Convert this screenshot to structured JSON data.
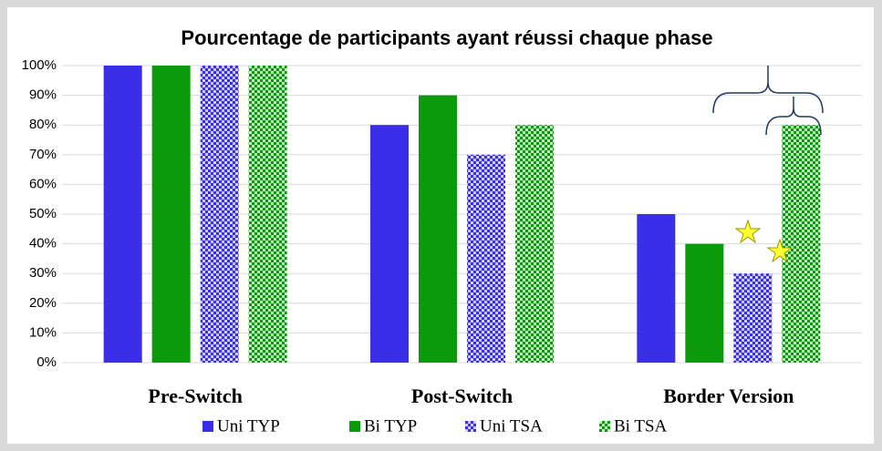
{
  "chart_data": {
    "type": "bar",
    "title": "Pourcentage de participants ayant réussi chaque phase",
    "categories": [
      "Pre-Switch",
      "Post-Switch",
      "Border Version"
    ],
    "series": [
      {
        "name": "Uni TYP",
        "color": "#3a2ee8",
        "pattern": false,
        "values": [
          100,
          80,
          50
        ]
      },
      {
        "name": "Bi TYP",
        "color": "#0b9a0b",
        "pattern": false,
        "values": [
          100,
          90,
          40
        ]
      },
      {
        "name": "Uni TSA",
        "color": "#3a2ee8",
        "pattern": true,
        "values": [
          100,
          70,
          30
        ]
      },
      {
        "name": "Bi TSA",
        "color": "#0b9a0b",
        "pattern": true,
        "values": [
          100,
          80,
          80
        ]
      }
    ],
    "ylim": [
      0,
      100
    ],
    "yticks": [
      {
        "value": 0,
        "label": "0%"
      },
      {
        "value": 10,
        "label": "10%"
      },
      {
        "value": 20,
        "label": "20%"
      },
      {
        "value": 30,
        "label": "30%"
      },
      {
        "value": 40,
        "label": "40%"
      },
      {
        "value": 50,
        "label": "50%"
      },
      {
        "value": 60,
        "label": "60%"
      },
      {
        "value": 70,
        "label": "70%"
      },
      {
        "value": 80,
        "label": "80%"
      },
      {
        "value": 90,
        "label": "90%"
      },
      {
        "value": 100,
        "label": "100%"
      }
    ],
    "grid": true,
    "legend": "bottom"
  }
}
